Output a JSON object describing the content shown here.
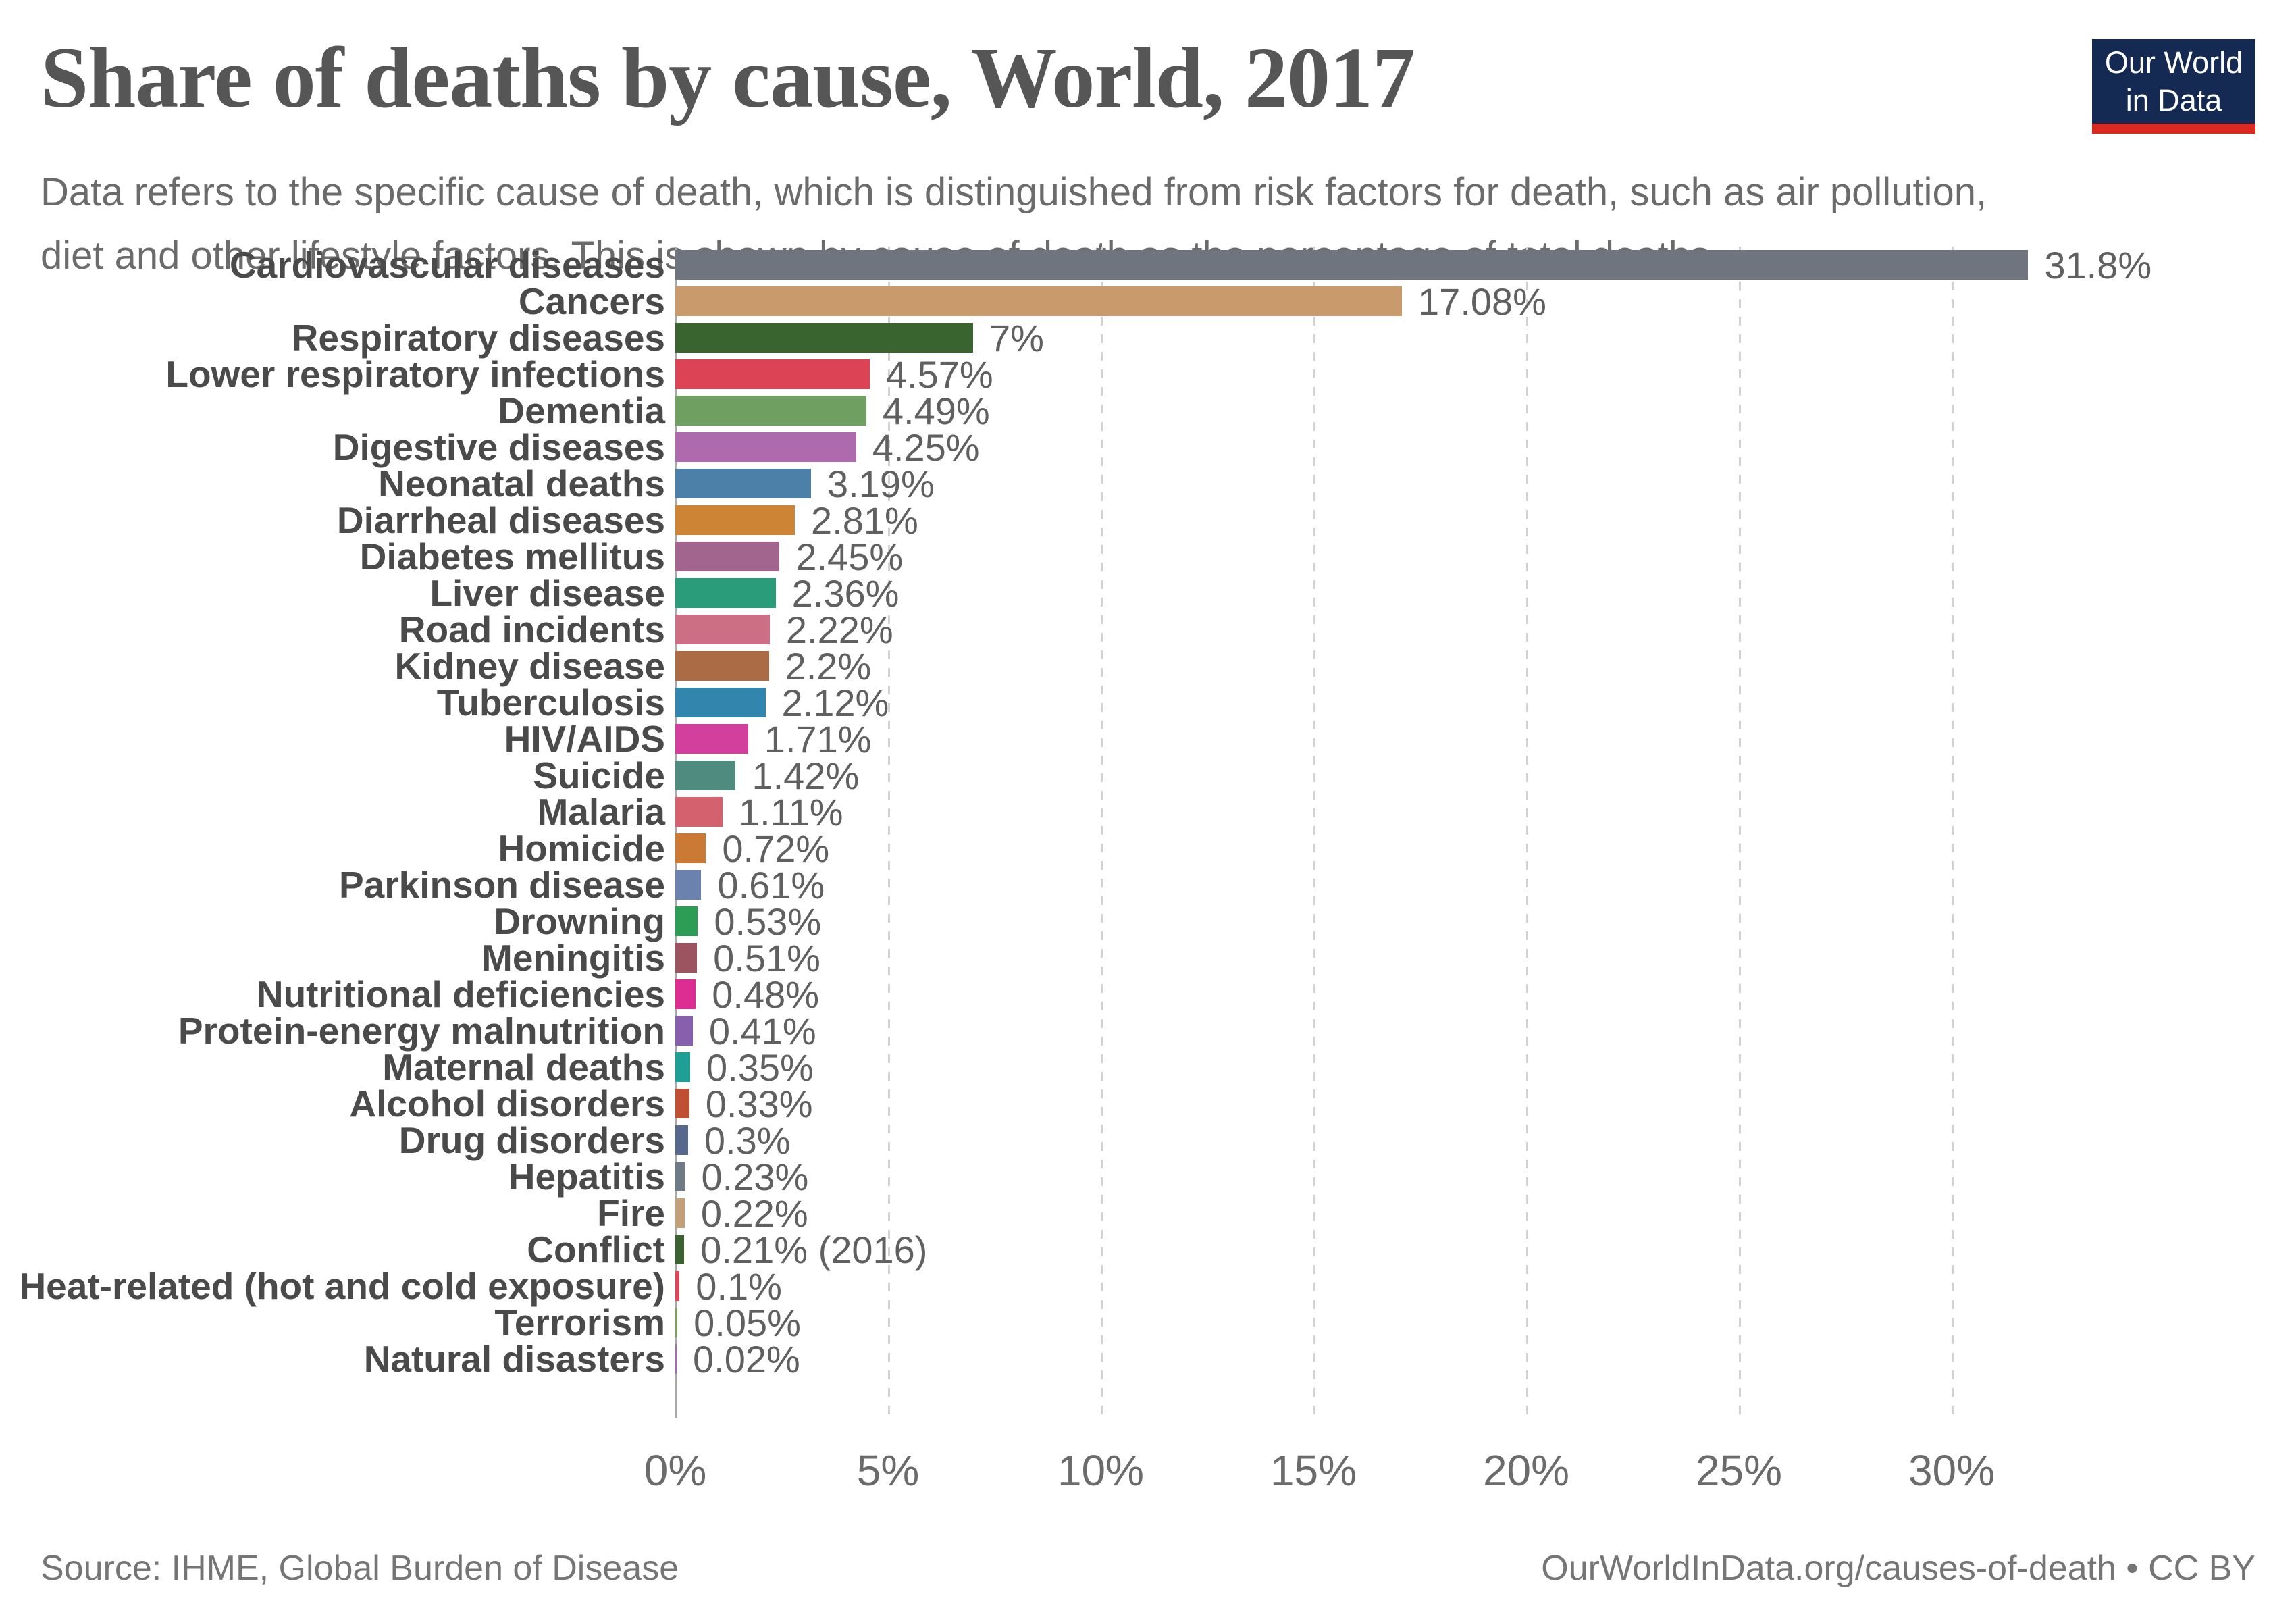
{
  "header": {
    "title": "Share of deaths by cause, World, 2017",
    "subtitle_line1": "Data refers to the specific cause of death, which is distinguished from risk factors for death, such as air pollution,",
    "subtitle_line2": "diet and other lifestyle factors. This is shown by cause of death as the percentage of total deaths."
  },
  "logo": {
    "line1": "Our World",
    "line2": "in Data",
    "bg_color": "#152A52",
    "accent_color": "#DC2A20",
    "text_color": "#FFFFFF"
  },
  "chart_data": {
    "type": "bar",
    "orientation": "horizontal",
    "title": "Share of deaths by cause, World, 2017",
    "xlabel": "",
    "ylabel": "",
    "unit": "%",
    "xlim": [
      0,
      38
    ],
    "grid": true,
    "axis_ticks": [
      {
        "value": 0,
        "label": "0%"
      },
      {
        "value": 5,
        "label": "5%"
      },
      {
        "value": 10,
        "label": "10%"
      },
      {
        "value": 15,
        "label": "15%"
      },
      {
        "value": 20,
        "label": "20%"
      },
      {
        "value": 25,
        "label": "25%"
      },
      {
        "value": 30,
        "label": "30%"
      }
    ],
    "bars": [
      {
        "label": "Cardiovascular diseases",
        "value": 31.8,
        "display": "31.8%",
        "color": "#70747E"
      },
      {
        "label": "Cancers",
        "value": 17.08,
        "display": "17.08%",
        "color": "#C89A6C"
      },
      {
        "label": "Respiratory diseases",
        "value": 7,
        "display": "7%",
        "color": "#3A642F"
      },
      {
        "label": "Lower respiratory infections",
        "value": 4.57,
        "display": "4.57%",
        "color": "#DC4354"
      },
      {
        "label": "Dementia",
        "value": 4.49,
        "display": "4.49%",
        "color": "#70A061"
      },
      {
        "label": "Digestive diseases",
        "value": 4.25,
        "display": "4.25%",
        "color": "#AD6BAD"
      },
      {
        "label": "Neonatal deaths",
        "value": 3.19,
        "display": "3.19%",
        "color": "#4D80A9"
      },
      {
        "label": "Diarrheal diseases",
        "value": 2.81,
        "display": "2.81%",
        "color": "#CD8435"
      },
      {
        "label": "Diabetes mellitus",
        "value": 2.45,
        "display": "2.45%",
        "color": "#A1658E"
      },
      {
        "label": "Liver disease",
        "value": 2.36,
        "display": "2.36%",
        "color": "#2B9C79"
      },
      {
        "label": "Road incidents",
        "value": 2.22,
        "display": "2.22%",
        "color": "#CC6F85"
      },
      {
        "label": "Kidney disease",
        "value": 2.2,
        "display": "2.2%",
        "color": "#AB6C45"
      },
      {
        "label": "Tuberculosis",
        "value": 2.12,
        "display": "2.12%",
        "color": "#3286AE"
      },
      {
        "label": "HIV/AIDS",
        "value": 1.71,
        "display": "1.71%",
        "color": "#D23F9C"
      },
      {
        "label": "Suicide",
        "value": 1.42,
        "display": "1.42%",
        "color": "#4F8B7E"
      },
      {
        "label": "Malaria",
        "value": 1.11,
        "display": "1.11%",
        "color": "#D4616E"
      },
      {
        "label": "Homicide",
        "value": 0.72,
        "display": "0.72%",
        "color": "#CA7A35"
      },
      {
        "label": "Parkinson disease",
        "value": 0.61,
        "display": "0.61%",
        "color": "#6B82AE"
      },
      {
        "label": "Drowning",
        "value": 0.53,
        "display": "0.53%",
        "color": "#2D9C55"
      },
      {
        "label": "Meningitis",
        "value": 0.51,
        "display": "0.51%",
        "color": "#9C5460"
      },
      {
        "label": "Nutritional deficiencies",
        "value": 0.48,
        "display": "0.48%",
        "color": "#DD2D93"
      },
      {
        "label": "Protein-energy malnutrition",
        "value": 0.41,
        "display": "0.41%",
        "color": "#8760AD"
      },
      {
        "label": "Maternal deaths",
        "value": 0.35,
        "display": "0.35%",
        "color": "#1F9E95"
      },
      {
        "label": "Alcohol disorders",
        "value": 0.33,
        "display": "0.33%",
        "color": "#BF5033"
      },
      {
        "label": "Drug disorders",
        "value": 0.3,
        "display": "0.3%",
        "color": "#56688C"
      },
      {
        "label": "Hepatitis",
        "value": 0.23,
        "display": "0.23%",
        "color": "#6F7A87"
      },
      {
        "label": "Fire",
        "value": 0.22,
        "display": "0.22%",
        "color": "#C3A178"
      },
      {
        "label": "Conflict",
        "value": 0.21,
        "display": "0.21% (2016)",
        "color": "#3D6231"
      },
      {
        "label": "Heat-related (hot and cold exposure)",
        "value": 0.1,
        "display": "0.1%",
        "color": "#D94856"
      },
      {
        "label": "Terrorism",
        "value": 0.05,
        "display": "0.05%",
        "color": "#7BA05B"
      },
      {
        "label": "Natural disasters",
        "value": 0.02,
        "display": "0.02%",
        "color": "#9F6FAF"
      }
    ]
  },
  "footer": {
    "source": "Source: IHME, Global Burden of Disease",
    "credit": "OurWorldInData.org/causes-of-death • CC BY"
  }
}
